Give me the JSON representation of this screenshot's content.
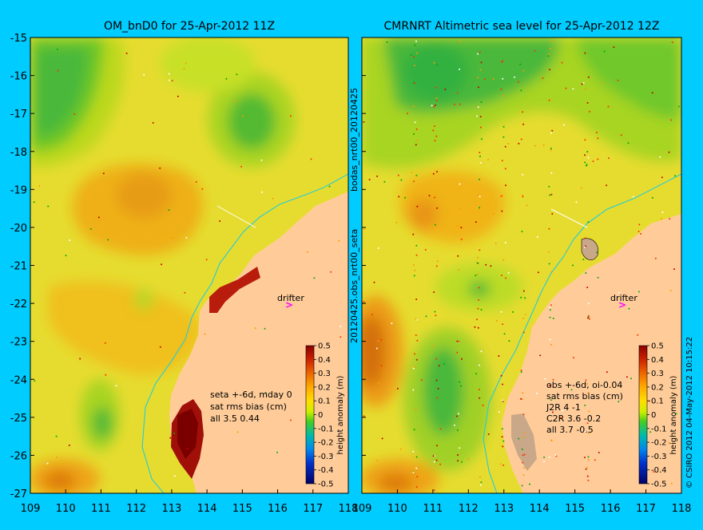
{
  "left_map": {
    "title": "OM_bnD0 for 25-Apr-2012 11Z",
    "side_label": "20120425.obs_nrt00_seta",
    "annotation": [
      "seta +-6d, mday 0",
      "sat rms bias (cm)",
      "all 3.5 0.44"
    ],
    "drifter_label": "drifter"
  },
  "right_map": {
    "title": "CMRNRT Altimetric sea level  for 25-Apr-2012 12Z",
    "side_label": "bodas_nrt00_20120425",
    "annotation": [
      "obs +-6d, oi-0.04",
      "sat rms bias (cm)",
      "J2R   4 -1",
      "C2R   3.6 -0.2",
      "all 3.7 -0.5"
    ],
    "drifter_label": "drifter"
  },
  "axes": {
    "x_ticks": [
      "109",
      "110",
      "111",
      "112",
      "113",
      "114",
      "115",
      "116",
      "117",
      "118"
    ],
    "y_ticks": [
      "-15",
      "-16",
      "-17",
      "-18",
      "-19",
      "-20",
      "-21",
      "-22",
      "-23",
      "-24",
      "-25",
      "-26",
      "-27"
    ]
  },
  "colorbar": {
    "label": "height anomaly (m)",
    "ticks": [
      "0.5",
      "0.4",
      "0.3",
      "0.2",
      "0.1",
      "0",
      "-0.1",
      "-0.2",
      "-0.3",
      "-0.4",
      "-0.5"
    ]
  },
  "credit": "© CSIRO 2012   04-May-2012 10:15:22",
  "colors": {
    "background": "#00ccff",
    "land": "#ffcc99",
    "coastline_cyan": "#33cccc",
    "drifter_magenta": "#ff00ff"
  }
}
